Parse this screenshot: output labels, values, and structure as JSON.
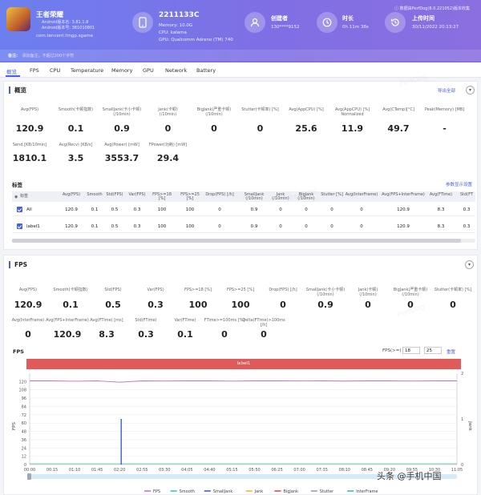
{
  "app": {
    "name": "王者荣耀",
    "android_version": "Android版本名: 3.81.1.8",
    "version_code": "Android版本号: 381010801",
    "package": "com.tencent.tmgp.sgame"
  },
  "device": {
    "model": "2211133C",
    "memory": "Memory: 10.0G",
    "cpu": "CPU: kalama",
    "gpu": "GPU: Qualcomm Adreno (TM) 740"
  },
  "creator": {
    "label": "创建者",
    "value": "130****9152"
  },
  "duration": {
    "label": "时长",
    "value": "0h 11m 38s"
  },
  "upload": {
    "label": "上传时间",
    "value": "30/11/2022 20:13:27"
  },
  "notice": "数据由PerfDog(8.0.221052)版本收集",
  "notes": {
    "label": "备注:",
    "placeholder": "添加备注，不超过200个字符"
  },
  "tabs": [
    "概览",
    "FPS",
    "CPU",
    "Temperature",
    "Memory",
    "GPU",
    "Network",
    "Battery"
  ],
  "overview": {
    "title": "概览",
    "export": "导出全部",
    "metrics_row1": [
      {
        "label": "Avg(FPS)",
        "value": "120.9"
      },
      {
        "label": "Smooth(卡顿指数)",
        "value": "0.1"
      },
      {
        "label": "SmallJank(卡小卡顿)\n(/10min)",
        "value": "0.9"
      },
      {
        "label": "Jank(卡顿)\n(/10min)",
        "value": "0"
      },
      {
        "label": "BigJank(严重卡顿)\n(/10min)",
        "value": "0"
      },
      {
        "label": "Stutter(卡顿率) [%]",
        "value": "0"
      },
      {
        "label": "Avg(AppCPU) [%]",
        "value": "25.6"
      },
      {
        "label": "Avg(AppCPU) [%]\nNormalized",
        "value": "11.9"
      },
      {
        "label": "Avg(CTemp)[°C]",
        "value": "49.7"
      },
      {
        "label": "Peak(Memory) [MB]",
        "value": "-"
      }
    ],
    "metrics_row2": [
      {
        "label": "Send [KB/10min]",
        "value": "1810.1"
      },
      {
        "label": "Avg(Recv) [KB/s]",
        "value": "3.5"
      },
      {
        "label": "Avg(Power) [mW]",
        "value": "3553.7"
      },
      {
        "label": "FPower(功耗) [mW]",
        "value": "29.4"
      }
    ],
    "labels_title": "标签",
    "labels_link": "参数显示设置",
    "table_headers": [
      "标签",
      "Avg(FPS)",
      "Smooth",
      "Std(FPS)",
      "Var(FPS)",
      "FPS>=18 [%]",
      "FPS>=25 [%]",
      "Drop(FPS) [/h]",
      "SmallJank\n(/10min)",
      "Jank\n(/10min)",
      "BigJank\n(/10min)",
      "Stutter [%]",
      "Avg(InterFrame)",
      "Avg(FPS+InterFrame)",
      "Avg(FTime)",
      "Std(FT"
    ],
    "table_rows": [
      [
        "All",
        "120.9",
        "0.1",
        "0.5",
        "0.3",
        "100",
        "100",
        "0",
        "0.9",
        "0",
        "0",
        "0",
        "0",
        "120.9",
        "8.3",
        "0.3"
      ],
      [
        "label1",
        "120.9",
        "0.1",
        "0.5",
        "0.3",
        "100",
        "100",
        "0",
        "0.9",
        "0",
        "0",
        "0",
        "0",
        "120.9",
        "8.3",
        "0.3"
      ]
    ]
  },
  "fps_section": {
    "title": "FPS",
    "metrics_row1": [
      {
        "label": "Avg(FPS)",
        "value": "120.9"
      },
      {
        "label": "Smooth(卡顿指数)",
        "value": "0.1"
      },
      {
        "label": "Std(FPS)",
        "value": "0.5"
      },
      {
        "label": "Var(FPS)",
        "value": "0.3"
      },
      {
        "label": "FPS>=18 [%]",
        "value": "100"
      },
      {
        "label": "FPS>=25 [%]",
        "value": "100"
      },
      {
        "label": "Drop(FPS) [/h]",
        "value": "0"
      },
      {
        "label": "SmallJank(卡小卡顿)\n(/10min)",
        "value": "0.9"
      },
      {
        "label": "Jank(卡顿)\n(/10min)",
        "value": "0"
      },
      {
        "label": "BigJank(严重卡顿)\n(/10min)",
        "value": "0"
      },
      {
        "label": "Stutter(卡顿率) [%]",
        "value": "0"
      }
    ],
    "metrics_row2": [
      {
        "label": "Avg(InterFrame)",
        "value": "0"
      },
      {
        "label": "Avg(FPS+InterFrame)",
        "value": "120.9"
      },
      {
        "label": "Avg(FTime) [ms]",
        "value": "8.3"
      },
      {
        "label": "Std(FTime)",
        "value": "0.3"
      },
      {
        "label": "Var(FTime)",
        "value": "0.1"
      },
      {
        "label": "FTime>=100ms [%]",
        "value": "0"
      },
      {
        "label": "Delta(FTime)>100ms [/h]",
        "value": "0"
      }
    ],
    "chart_title": "FPS",
    "fps_filter_label": "FPS(>=)",
    "fps_filter_1": "18",
    "fps_filter_2": "25",
    "reset": "重置",
    "label_bar": "label1"
  },
  "chart_data": {
    "type": "line",
    "ylabel": "FPS",
    "y2label": "Jank",
    "ylim": [
      0,
      132
    ],
    "y2lim": [
      0,
      2
    ],
    "yticks": [
      0,
      12,
      24,
      36,
      48,
      60,
      72,
      84,
      96,
      108,
      120
    ],
    "y2ticks": [
      0,
      1,
      2
    ],
    "x": [
      "00:00",
      "00:15",
      "01:10",
      "01:45",
      "02:20",
      "02:55",
      "03:30",
      "04:05",
      "04:40",
      "05:15",
      "05:50",
      "06:25",
      "07:00",
      "07:35",
      "08:10",
      "08:45",
      "09:20",
      "09:55",
      "10:30",
      "11:05"
    ],
    "series": [
      {
        "name": "FPS",
        "color": "#c46fd6",
        "values": [
          121,
          121,
          120.5,
          121,
          119,
          121,
          120.8,
          121,
          121,
          120.6,
          121,
          121,
          120.9,
          121,
          120.7,
          121,
          121,
          120.8,
          121,
          121
        ]
      },
      {
        "name": "SmallJank",
        "color": "#3a5ed9",
        "spike_at": "02:20",
        "spike_value": 1
      }
    ],
    "legend": [
      "FPS",
      "Smooth",
      "SmallJank",
      "Jank",
      "BigJank",
      "Stutter",
      "InterFrame"
    ],
    "legend_colors": [
      "#c46fd6",
      "#4fbfa8",
      "#3a5ed9",
      "#f5b342",
      "#e04a4a",
      "#9aa0aa",
      "#40b0e0"
    ],
    "grid": true
  },
  "watermark": "头条 @手机中国"
}
